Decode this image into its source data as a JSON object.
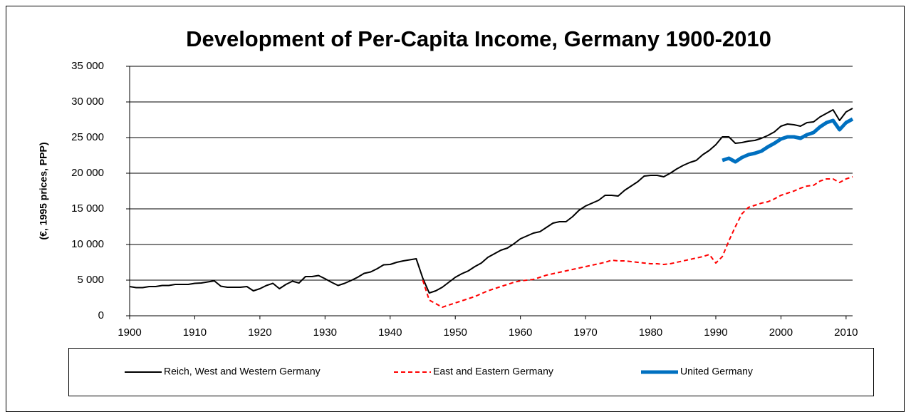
{
  "chart_data": {
    "type": "line",
    "title": "Development of Per-Capita Income, Germany 1900-2010",
    "y_label": "(€, 1995 prices, PPP)",
    "xlim": [
      1900,
      2011
    ],
    "xticks": [
      1900,
      1910,
      1920,
      1930,
      1940,
      1950,
      1960,
      1970,
      1980,
      1990,
      2000,
      2010
    ],
    "ylim": [
      0,
      35000
    ],
    "yticks": [
      0,
      {
        "value": 5000,
        "label": "5 000"
      },
      {
        "value": 10000,
        "label": "10 000"
      },
      {
        "value": 15000,
        "label": "15 000"
      },
      {
        "value": 20000,
        "label": "20 000"
      },
      {
        "value": 25000,
        "label": "25 000"
      },
      {
        "value": 30000,
        "label": "30 000"
      },
      {
        "value": 35000,
        "label": "35 000"
      }
    ],
    "grid": true,
    "legend": "bottom",
    "series": [
      {
        "name": "Reich, West and Western Germany",
        "color": "#000000",
        "dash": false,
        "width": 2,
        "x": [
          1900,
          1901,
          1902,
          1903,
          1904,
          1905,
          1906,
          1907,
          1908,
          1909,
          1910,
          1911,
          1912,
          1913,
          1914,
          1915,
          1916,
          1917,
          1918,
          1919,
          1920,
          1921,
          1922,
          1923,
          1924,
          1925,
          1926,
          1927,
          1928,
          1929,
          1930,
          1931,
          1932,
          1933,
          1934,
          1935,
          1936,
          1937,
          1938,
          1939,
          1940,
          1941,
          1942,
          1943,
          1944,
          1945,
          1946,
          1947,
          1948,
          1949,
          1950,
          1951,
          1952,
          1953,
          1954,
          1955,
          1956,
          1957,
          1958,
          1959,
          1960,
          1961,
          1962,
          1963,
          1964,
          1965,
          1966,
          1967,
          1968,
          1969,
          1970,
          1971,
          1972,
          1973,
          1974,
          1975,
          1976,
          1977,
          1978,
          1979,
          1980,
          1981,
          1982,
          1983,
          1984,
          1985,
          1986,
          1987,
          1988,
          1989,
          1990,
          1991,
          1992,
          1993,
          1994,
          1995,
          1996,
          1997,
          1998,
          1999,
          2000,
          2001,
          2002,
          2003,
          2004,
          2005,
          2006,
          2007,
          2008,
          2009,
          2010,
          2011
        ],
        "values": [
          4100,
          3950,
          3950,
          4100,
          4100,
          4250,
          4250,
          4400,
          4400,
          4400,
          4550,
          4600,
          4750,
          4900,
          4150,
          4000,
          4000,
          4000,
          4100,
          3500,
          3800,
          4250,
          4550,
          3800,
          4400,
          4850,
          4600,
          5500,
          5500,
          5650,
          5200,
          4700,
          4250,
          4550,
          4950,
          5400,
          5950,
          6150,
          6600,
          7150,
          7200,
          7500,
          7700,
          7850,
          8000,
          5300,
          3200,
          3500,
          4000,
          4700,
          5400,
          5900,
          6300,
          6900,
          7400,
          8200,
          8700,
          9200,
          9500,
          10100,
          10800,
          11200,
          11600,
          11800,
          12400,
          13000,
          13200,
          13200,
          13900,
          14800,
          15400,
          15800,
          16200,
          16900,
          16900,
          16800,
          17600,
          18200,
          18800,
          19600,
          19700,
          19700,
          19500,
          20000,
          20600,
          21100,
          21500,
          21800,
          22600,
          23200,
          24000,
          25100,
          25100,
          24200,
          24300,
          24500,
          24600,
          24900,
          25300,
          25800,
          26600,
          26900,
          26800,
          26600,
          27100,
          27200,
          27900,
          28400,
          28900,
          27400,
          28600,
          29100
        ]
      },
      {
        "name": "East and Eastern Germany",
        "color": "#ff0000",
        "dash": true,
        "width": 2,
        "x": [
          1945,
          1946,
          1947,
          1948,
          1949,
          1950,
          1951,
          1952,
          1953,
          1954,
          1955,
          1956,
          1957,
          1958,
          1959,
          1960,
          1961,
          1962,
          1963,
          1964,
          1965,
          1966,
          1967,
          1968,
          1969,
          1970,
          1971,
          1972,
          1973,
          1974,
          1975,
          1976,
          1977,
          1978,
          1979,
          1980,
          1981,
          1982,
          1983,
          1984,
          1985,
          1986,
          1987,
          1988,
          1989,
          1990,
          1991,
          1992,
          1993,
          1994,
          1995,
          1996,
          1997,
          1998,
          1999,
          2000,
          2001,
          2002,
          2003,
          2004,
          2005,
          2006,
          2007,
          2008,
          2009,
          2010,
          2011
        ],
        "values": [
          5000,
          2200,
          1700,
          1200,
          1500,
          1800,
          2100,
          2400,
          2700,
          3100,
          3500,
          3800,
          4100,
          4400,
          4700,
          4900,
          5000,
          5100,
          5400,
          5700,
          5900,
          6100,
          6300,
          6500,
          6700,
          6900,
          7100,
          7300,
          7500,
          7800,
          7700,
          7700,
          7600,
          7500,
          7400,
          7300,
          7300,
          7200,
          7300,
          7500,
          7700,
          7900,
          8100,
          8300,
          8600,
          7400,
          8300,
          10500,
          12500,
          14300,
          15200,
          15500,
          15800,
          16000,
          16400,
          16900,
          17200,
          17500,
          17900,
          18200,
          18300,
          18900,
          19200,
          19200,
          18700,
          19200,
          19500
        ]
      },
      {
        "name": "United Germany",
        "color": "#0070c0",
        "dash": false,
        "width": 5,
        "x": [
          1991,
          1992,
          1993,
          1994,
          1995,
          1996,
          1997,
          1998,
          1999,
          2000,
          2001,
          2002,
          2003,
          2004,
          2005,
          2006,
          2007,
          2008,
          2009,
          2010,
          2011
        ],
        "values": [
          21800,
          22100,
          21600,
          22200,
          22600,
          22800,
          23100,
          23700,
          24200,
          24800,
          25100,
          25100,
          24900,
          25400,
          25700,
          26500,
          27100,
          27400,
          26100,
          27100,
          27600
        ]
      }
    ]
  }
}
